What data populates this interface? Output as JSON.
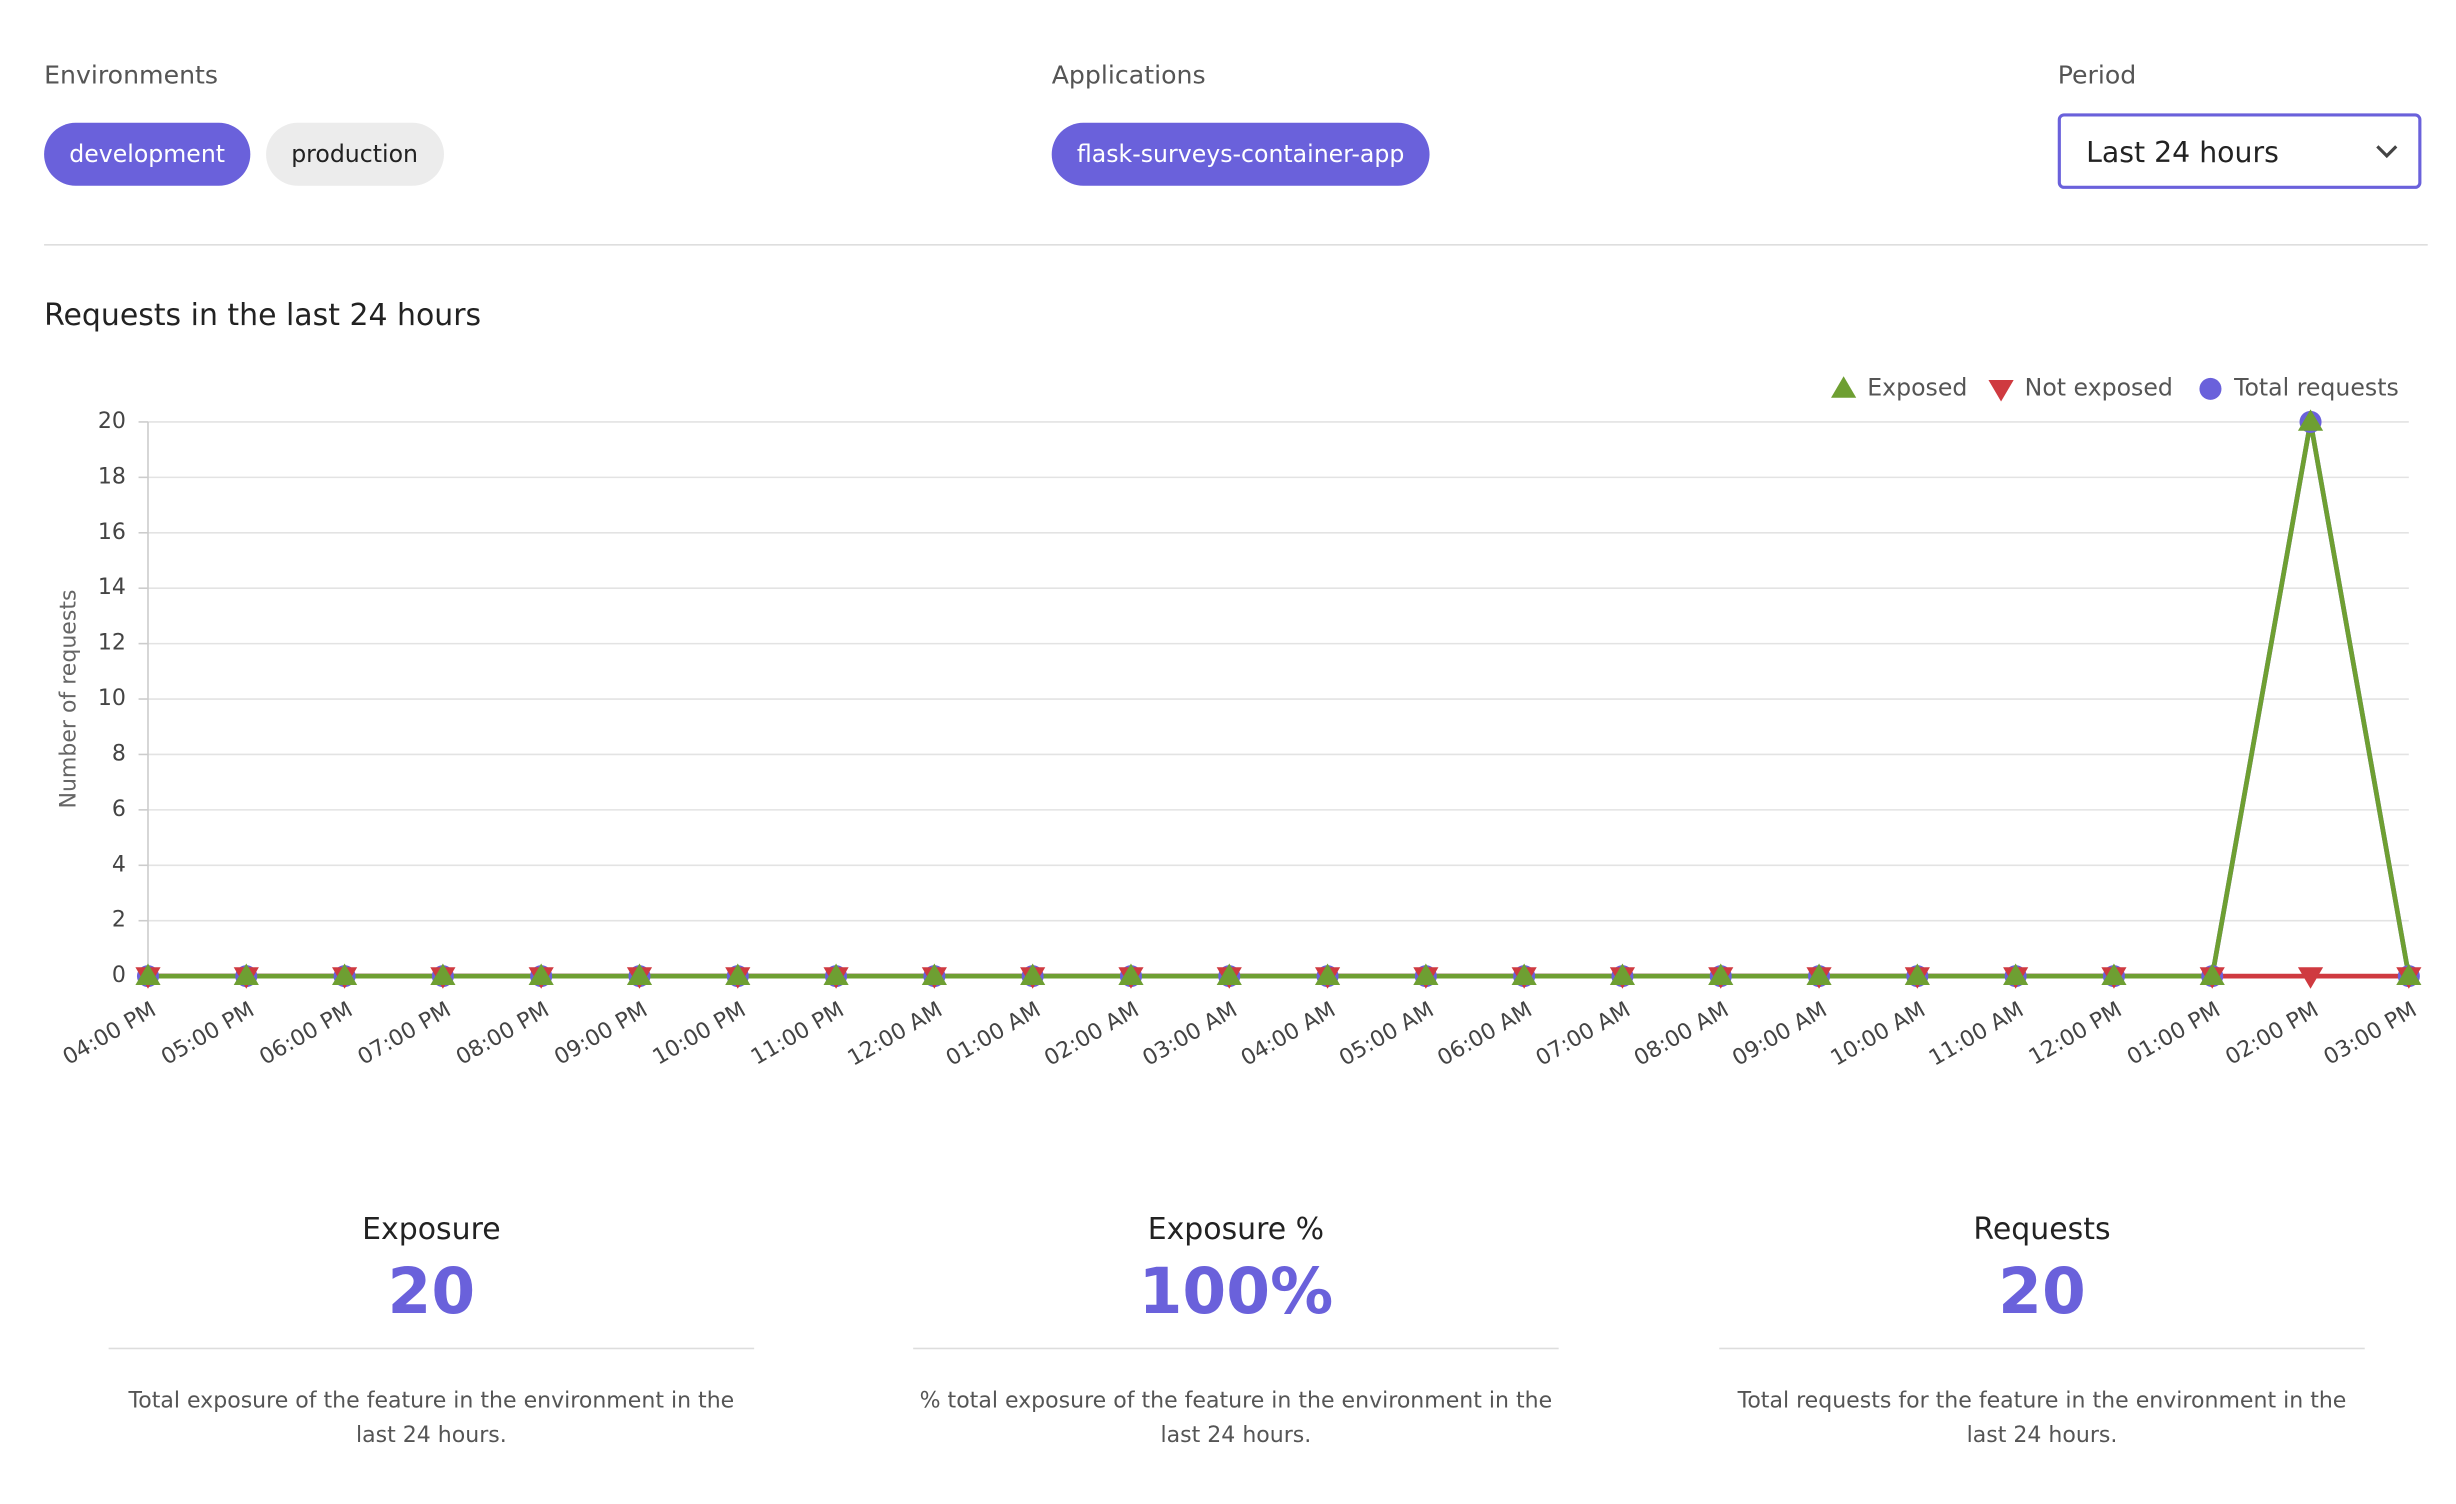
{
  "filters": {
    "environments": {
      "label": "Environments",
      "options": [
        {
          "name": "development",
          "selected": true
        },
        {
          "name": "production",
          "selected": false
        }
      ]
    },
    "applications": {
      "label": "Applications",
      "options": [
        {
          "name": "flask-surveys-container-app",
          "selected": true
        }
      ]
    },
    "period": {
      "label": "Period",
      "value": "Last 24 hours"
    }
  },
  "chart_data": {
    "type": "line",
    "title": "Requests in the last 24 hours",
    "y_label": "Number of requests",
    "categories": [
      "04:00 PM",
      "05:00 PM",
      "06:00 PM",
      "07:00 PM",
      "08:00 PM",
      "09:00 PM",
      "10:00 PM",
      "11:00 PM",
      "12:00 AM",
      "01:00 AM",
      "02:00 AM",
      "03:00 AM",
      "04:00 AM",
      "05:00 AM",
      "06:00 AM",
      "07:00 AM",
      "08:00 AM",
      "09:00 AM",
      "10:00 AM",
      "11:00 AM",
      "12:00 PM",
      "01:00 PM",
      "02:00 PM",
      "03:00 PM"
    ],
    "series": [
      {
        "name": "Exposed",
        "color": "#6e9f32",
        "marker": "triangle-up",
        "values": [
          0,
          0,
          0,
          0,
          0,
          0,
          0,
          0,
          0,
          0,
          0,
          0,
          0,
          0,
          0,
          0,
          0,
          0,
          0,
          0,
          0,
          0,
          20,
          0
        ]
      },
      {
        "name": "Not exposed",
        "color": "#cf3a40",
        "marker": "triangle-down",
        "values": [
          0,
          0,
          0,
          0,
          0,
          0,
          0,
          0,
          0,
          0,
          0,
          0,
          0,
          0,
          0,
          0,
          0,
          0,
          0,
          0,
          0,
          0,
          0,
          0
        ]
      },
      {
        "name": "Total requests",
        "color": "#6a61db",
        "marker": "circle",
        "values": [
          0,
          0,
          0,
          0,
          0,
          0,
          0,
          0,
          0,
          0,
          0,
          0,
          0,
          0,
          0,
          0,
          0,
          0,
          0,
          0,
          0,
          0,
          20,
          0
        ]
      }
    ],
    "ylim": [
      0,
      20
    ],
    "yticks": [
      0,
      2,
      4,
      6,
      8,
      10,
      12,
      14,
      16,
      18,
      20
    ],
    "grid": true,
    "legend": "top-right"
  },
  "stats": [
    {
      "title": "Exposure",
      "value": "20",
      "description": "Total exposure of the feature in the environment in the last 24 hours."
    },
    {
      "title": "Exposure %",
      "value": "100%",
      "description": "% total exposure of the feature in the environment in the last 24 hours."
    },
    {
      "title": "Requests",
      "value": "20",
      "description": "Total requests for the feature in the environment in the last 24 hours."
    }
  ]
}
